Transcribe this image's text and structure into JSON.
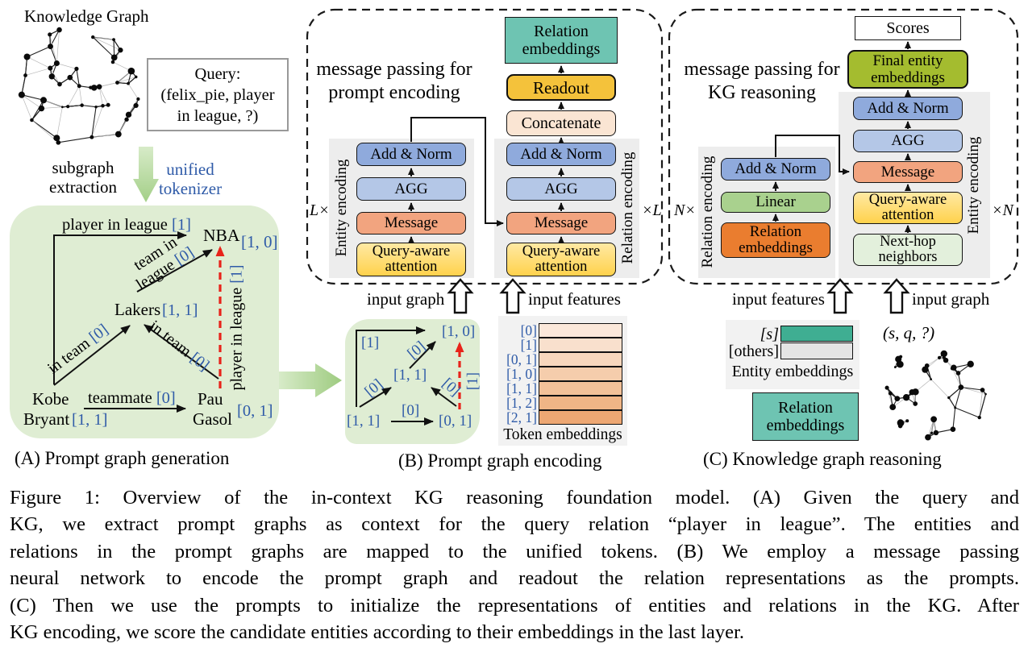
{
  "colors": {
    "panel_green": "#DFEDD3",
    "gray_column": "#EDEDED",
    "light_panel": "#F2F2F2",
    "add_norm": "#8FAADC",
    "agg": "#B4C7E7",
    "message": "#F2A47F",
    "query_attention": "#FFD24C",
    "relation_emb_teal": "#6EC4B2",
    "readout": "#F4C23B",
    "concatenate": "#FAE5D3",
    "scores": "#FFFFFF",
    "final_entity": "#A4BC2F",
    "relation_emb_orange": "#EA7D2F",
    "linear": "#A9D18E",
    "next_hop": "#E3F0DC",
    "s_bar": "#3FAE92",
    "others_bar": "#E4E4E4",
    "token_blue": "#2F5BA8",
    "red_arrow": "#E8231A",
    "token_rows": [
      "#FBE8DA",
      "#F9E0CD",
      "#F7D7BD",
      "#F5CDAC",
      "#F2C199",
      "#F0B586",
      "#EDA773"
    ]
  },
  "panelA": {
    "kg_title": "Knowledge Graph",
    "query": {
      "l1": "Query:",
      "l2": "(felix_pie, player",
      "l3": "in league, ?)"
    },
    "subgraph_extraction": {
      "l1": "subgraph",
      "l2": "extraction"
    },
    "unified_tokenizer": {
      "l1": "unified",
      "l2": "tokenizer"
    },
    "nodes": {
      "nba": "NBA",
      "nba_token": "[1, 0]",
      "lakers": "Lakers",
      "lakers_token": "[1, 1]",
      "kobe_l1": "Kobe",
      "kobe_l2": "Bryant",
      "kobe_token": "[1, 1]",
      "pau_l1": "Pau",
      "pau_l2": "Gasol",
      "pau_token": "[0, 1]"
    },
    "edges": {
      "player_in_league": {
        "text": "player in league",
        "token": "[1]"
      },
      "team_in_league": {
        "l1": "team in",
        "l2": "league",
        "token": "[0]"
      },
      "in_team": {
        "text": "in team",
        "token": "[0]"
      },
      "teammate": {
        "text": "teammate",
        "token": "[0]"
      },
      "query_edge": {
        "text": "player in league",
        "token": "[1]"
      }
    },
    "caption": "(A) Prompt graph generation"
  },
  "panelB": {
    "title": {
      "l1": "message passing for",
      "l2": "prompt encoding"
    },
    "top_stack": {
      "relation_embeddings": {
        "l1": "Relation",
        "l2": "embeddings"
      },
      "readout": "Readout",
      "concatenate": "Concatenate"
    },
    "entity_col_label": "Entity encoding",
    "relation_col_label": "Relation encoding",
    "stack": [
      "Add & Norm",
      "AGG",
      "Message",
      "Query-aware attention"
    ],
    "mult_left": "L×",
    "mult_right": "×L",
    "input_graph": "input graph",
    "input_features": "input features",
    "mini_graph": {
      "top_edge_token": "[1]",
      "edge_token": "[0]",
      "red_token": "[1]",
      "node_bl": "[1, 1]",
      "node_center": "[1, 1]",
      "node_tr": "[1, 0]",
      "node_br": "[0, 1]"
    },
    "token_table": {
      "labels": [
        "[0]",
        "[1]",
        "[0, 1]",
        "[1, 0]",
        "[1, 1]",
        "[1, 2]",
        "[2, 1]"
      ],
      "caption": "Token embeddings"
    },
    "caption": "(B) Prompt graph encoding"
  },
  "panelC": {
    "title": {
      "l1": "message passing for",
      "l2": "KG reasoning"
    },
    "scores": "Scores",
    "final_entity": {
      "l1": "Final entity",
      "l2": "embeddings"
    },
    "relation_col_label": "Relation encoding",
    "entity_col_label": "Entity encoding",
    "left_stack": {
      "add_norm": "Add & Norm",
      "linear": "Linear",
      "relation_embeddings": {
        "l1": "Relation",
        "l2": "embeddings"
      }
    },
    "right_stack": [
      "Add & Norm",
      "AGG",
      "Message",
      "Query-aware attention",
      "Next-hop neighbors"
    ],
    "mult_left": "N×",
    "mult_right": "×N",
    "input_features": "input features",
    "input_graph": "input graph",
    "entity_embeddings": {
      "s_label": "[s]",
      "others_label": "[others]",
      "caption": "Entity embeddings"
    },
    "relation_embeddings_box": {
      "l1": "Relation",
      "l2": "embeddings"
    },
    "query_tuple": "(s, q, ?)",
    "caption": "(C) Knowledge graph reasoning"
  },
  "figure_caption": {
    "lines": [
      "Figure 1: Overview of the in-context KG reasoning foundation model. (A) Given the query and",
      "KG, we extract prompt graphs as context for the query relation “player in league”. The entities and",
      "relations in the prompt graphs are mapped to the unified tokens. (B) We employ a message passing",
      "neural network to encode the prompt graph and readout the relation representations as the prompts.",
      "(C) Then we use the prompts to initialize the representations of entities and relations in the KG. After",
      "KG encoding, we score the candidate entities according to their embeddings in the last layer."
    ]
  }
}
